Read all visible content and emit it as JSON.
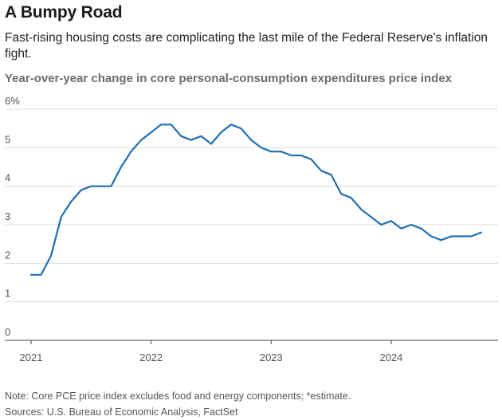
{
  "header": {
    "title": "A Bumpy Road",
    "subtitle": "Fast-rising housing costs are complicating the last mile of the Federal Reserve's inflation fight.",
    "chart_label": "Year-over-year change in core personal-consumption expenditures price index"
  },
  "footer": {
    "note": "Note: Core PCE price index excludes food and energy components; *estimate.",
    "sources": "Sources: U.S. Bureau of Economic Analysis, FactSet"
  },
  "colors": {
    "line": "#1f6fb5",
    "grid": "#dcdcdc",
    "axis": "#444444"
  },
  "chart_data": {
    "type": "line",
    "title": "Year-over-year change in core personal-consumption expenditures price index",
    "xlabel": "",
    "ylabel": "",
    "x_tick_labels": [
      "2021",
      "2022",
      "2023",
      "2024"
    ],
    "x_tick_values": [
      2021,
      2022,
      2023,
      2024
    ],
    "y_tick_labels": [
      "6%",
      "5",
      "4",
      "3",
      "2",
      "1",
      "0"
    ],
    "y_tick_values": [
      6,
      5,
      4,
      3,
      2,
      1,
      0
    ],
    "ylim": [
      0,
      6
    ],
    "xlim": [
      2021,
      2024.83
    ],
    "grid": true,
    "series": [
      {
        "x": [
          "2021-01",
          "2021-02",
          "2021-03",
          "2021-04",
          "2021-05",
          "2021-06",
          "2021-07",
          "2021-08",
          "2021-09",
          "2021-10",
          "2021-11",
          "2021-12",
          "2022-01",
          "2022-02",
          "2022-03",
          "2022-04",
          "2022-05",
          "2022-06",
          "2022-07",
          "2022-08",
          "2022-09",
          "2022-10",
          "2022-11",
          "2022-12",
          "2023-01",
          "2023-02",
          "2023-03",
          "2023-04",
          "2023-05",
          "2023-06",
          "2023-07",
          "2023-08",
          "2023-09",
          "2023-10",
          "2023-11",
          "2023-12",
          "2024-01",
          "2024-02",
          "2024-03",
          "2024-04",
          "2024-05",
          "2024-06",
          "2024-07",
          "2024-08",
          "2024-09",
          "2024-10"
        ],
        "values": [
          1.7,
          1.7,
          2.2,
          3.2,
          3.6,
          3.9,
          4.0,
          4.0,
          4.0,
          4.5,
          4.9,
          5.2,
          5.4,
          5.6,
          5.6,
          5.3,
          5.2,
          5.3,
          5.1,
          5.4,
          5.6,
          5.5,
          5.2,
          5.0,
          4.9,
          4.9,
          4.8,
          4.8,
          4.7,
          4.4,
          4.3,
          3.8,
          3.7,
          3.4,
          3.2,
          3.0,
          3.1,
          2.9,
          3.0,
          2.9,
          2.7,
          2.6,
          2.7,
          2.7,
          2.7,
          2.8
        ]
      }
    ]
  }
}
